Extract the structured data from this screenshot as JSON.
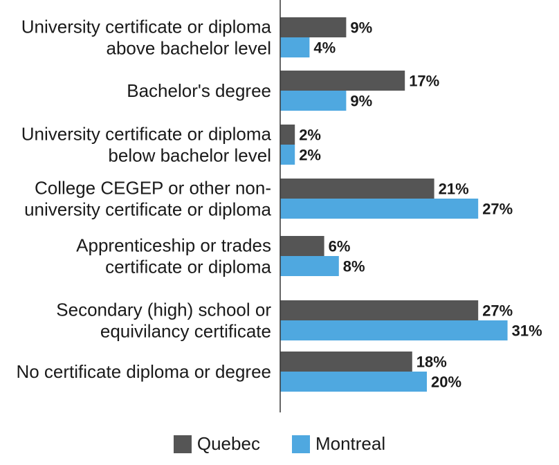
{
  "chart_data": {
    "type": "bar",
    "orientation": "horizontal",
    "title": "",
    "xlabel": "",
    "ylabel": "",
    "categories": [
      [
        "University certificate or diploma",
        "above bachelor level"
      ],
      [
        "Bachelor's degree"
      ],
      [
        "University certificate or diploma",
        "below bachelor level"
      ],
      [
        "College CEGEP or other non-",
        "university certificate or diploma"
      ],
      [
        "Apprenticeship or trades",
        "certificate or diploma"
      ],
      [
        "Secondary (high) school or",
        "equivilancy certificate"
      ],
      [
        "No certificate diploma or degree"
      ]
    ],
    "series": [
      {
        "name": "Quebec",
        "color": "#555555",
        "values": [
          9,
          17,
          2,
          21,
          6,
          27,
          18
        ],
        "labels": [
          "9%",
          "17%",
          "2%",
          "21%",
          "6%",
          "27%",
          "18%"
        ]
      },
      {
        "name": "Montreal",
        "color": "#4fa8e0",
        "values": [
          4,
          9,
          2,
          27,
          8,
          31,
          20
        ],
        "labels": [
          "4%",
          "9%",
          "2%",
          "27%",
          "8%",
          "31%",
          "20%"
        ]
      }
    ],
    "legend_position": "bottom",
    "grid": false
  }
}
